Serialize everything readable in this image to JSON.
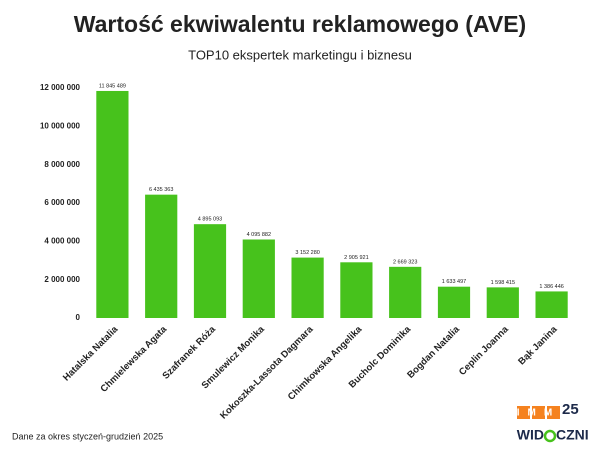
{
  "chart_data": {
    "type": "bar",
    "title": "Wartość ekwiwalentu reklamowego (AVE)",
    "subtitle": "TOP10 ekspertek marketingu i biznesu",
    "categories": [
      "Hatalska Natalia",
      "Chmielewska Agata",
      "Szafranek Róża",
      "Smulewicz Monika",
      "Kokoszka-Lassota Dagmara",
      "Chimkowska Angelika",
      "Bucholc Dominika",
      "Bogdan Natalia",
      "Ceplin Joanna",
      "Bąk Janina"
    ],
    "values": [
      11845489,
      6435363,
      4895093,
      4095882,
      3152280,
      2905921,
      2669323,
      1633497,
      1598415,
      1386446
    ],
    "value_labels": [
      "11 845 489",
      "6 435 363",
      "4 895 093",
      "4 095 882",
      "3 152 280",
      "2 905 921",
      "2 669 323",
      "1 633 497",
      "1 598 415",
      "1 386 446"
    ],
    "color": "#47c21c",
    "ylim": [
      0,
      12000000
    ],
    "yticks": [
      0,
      {
        "value": 2000000,
        "label": "2 000 000"
      },
      {
        "value": 4000000,
        "label": "4 000 000"
      },
      {
        "value": 6000000,
        "label": "6 000 000"
      },
      {
        "value": 8000000,
        "label": "8 000 000"
      },
      {
        "value": 10000000,
        "label": "10 000 000"
      },
      {
        "value": 12000000,
        "label": "12 000 000"
      }
    ],
    "grid": false,
    "footnote": "Dane za okres styczeń-grudzień 2025",
    "logo": {
      "imm": "IMM",
      "number": "25",
      "widoczni_left": "WID",
      "widoczni_right": "CZNI"
    }
  }
}
